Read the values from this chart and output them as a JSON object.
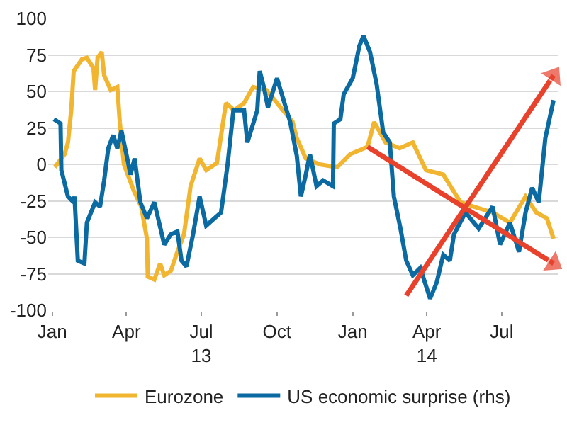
{
  "chart_data": {
    "type": "line",
    "grid": "y",
    "legend": "bottom",
    "marker": "none",
    "line_style": "solid",
    "xlim": [
      "2012-12-27",
      "2014-09-08"
    ],
    "xticks": [
      {
        "value": "2013-01-01",
        "label": "Jan"
      },
      {
        "value": "2013-04-01",
        "label": "Apr"
      },
      {
        "value": "2013-07-01",
        "label": "Jul\n13"
      },
      {
        "value": "2013-10-01",
        "label": "Oct"
      },
      {
        "value": "2014-01-01",
        "label": "Jan"
      },
      {
        "value": "2014-04-01",
        "label": "Apr\n14"
      },
      {
        "value": "2014-07-01",
        "label": "Jul"
      }
    ],
    "ylim": [
      -100,
      100
    ],
    "yticks": [
      -100,
      -75,
      -50,
      -25,
      0,
      25,
      50,
      75,
      100
    ],
    "series": [
      {
        "name": "Eurozone",
        "color": "#f2b530",
        "x": [
          "2013-01-04",
          "2013-01-16",
          "2013-01-20",
          "2013-01-24",
          "2013-01-27",
          "2013-02-06",
          "2013-02-12",
          "2013-02-20",
          "2013-02-22",
          "2013-02-25",
          "2013-03-02",
          "2013-03-05",
          "2013-03-13",
          "2013-03-21",
          "2013-03-24",
          "2013-03-29",
          "2013-04-10",
          "2013-04-19",
          "2013-04-26",
          "2013-04-27",
          "2013-05-05",
          "2013-05-12",
          "2013-05-17",
          "2013-05-25",
          "2013-06-02",
          "2013-06-10",
          "2013-06-18",
          "2013-06-29",
          "2013-07-07",
          "2013-07-20",
          "2013-07-31",
          "2013-08-10",
          "2013-08-22",
          "2013-09-02",
          "2013-09-18",
          "2013-10-04",
          "2013-10-20",
          "2013-10-25",
          "2013-11-05",
          "2013-11-22",
          "2013-12-13",
          "2013-12-29",
          "2014-01-19",
          "2014-01-27",
          "2014-02-10",
          "2014-02-27",
          "2014-03-15",
          "2014-03-31",
          "2014-04-21",
          "2014-05-12",
          "2014-05-28",
          "2014-06-20",
          "2014-07-11",
          "2014-07-30",
          "2014-08-12",
          "2014-08-25",
          "2014-09-02"
        ],
        "values": [
          -2,
          7,
          15,
          37,
          64,
          72,
          73,
          66,
          51,
          73,
          77,
          61,
          51,
          53,
          29,
          0,
          -18,
          -29,
          -51,
          -77,
          -79,
          -68,
          -76,
          -73,
          -60,
          -48,
          -15,
          4,
          -4,
          1,
          42,
          37,
          42,
          53,
          51,
          40,
          29,
          18,
          4,
          0,
          -2,
          7,
          12,
          29,
          15,
          11,
          15,
          -4,
          -7,
          -26,
          -29,
          -33,
          -40,
          -22,
          -33,
          -37,
          -51
        ]
      },
      {
        "name": "US economic surprise (rhs)",
        "color": "#0a6aa1",
        "x": [
          "2013-01-03",
          "2013-01-11",
          "2013-01-12",
          "2013-01-20",
          "2013-01-27",
          "2013-01-28",
          "2013-02-01",
          "2013-02-09",
          "2013-02-12",
          "2013-02-22",
          "2013-02-28",
          "2013-03-05",
          "2013-03-10",
          "2013-03-16",
          "2013-03-21",
          "2013-03-26",
          "2013-04-01",
          "2013-04-06",
          "2013-04-11",
          "2013-04-18",
          "2013-04-26",
          "2013-05-05",
          "2013-05-17",
          "2013-05-25",
          "2013-06-02",
          "2013-06-07",
          "2013-06-13",
          "2013-06-21",
          "2013-06-29",
          "2013-07-07",
          "2013-07-15",
          "2013-07-25",
          "2013-08-02",
          "2013-08-09",
          "2013-08-22",
          "2013-08-26",
          "2013-09-07",
          "2013-09-10",
          "2013-09-15",
          "2013-09-20",
          "2013-10-01",
          "2013-10-09",
          "2013-10-17",
          "2013-10-25",
          "2013-10-30",
          "2013-11-05",
          "2013-11-10",
          "2013-11-18",
          "2013-11-26",
          "2013-12-08",
          "2013-12-09",
          "2013-12-17",
          "2013-12-21",
          "2014-01-01",
          "2014-01-09",
          "2014-01-14",
          "2014-01-22",
          "2014-01-30",
          "2014-02-07",
          "2014-02-15",
          "2014-02-20",
          "2014-02-28",
          "2014-03-07",
          "2014-03-15",
          "2014-03-24",
          "2014-04-05",
          "2014-04-13",
          "2014-04-21",
          "2014-04-29",
          "2014-05-04",
          "2014-05-18",
          "2014-06-03",
          "2014-06-20",
          "2014-06-29",
          "2014-07-11",
          "2014-07-22",
          "2014-07-30",
          "2014-08-07",
          "2014-08-15",
          "2014-08-23",
          "2014-09-02"
        ],
        "values": [
          31,
          28,
          -4,
          -22,
          -26,
          -22,
          -66,
          -68,
          -40,
          -26,
          -29,
          -11,
          11,
          20,
          11,
          23,
          7,
          -7,
          4,
          -26,
          -37,
          -26,
          -55,
          -48,
          -46,
          -66,
          -70,
          -48,
          -22,
          -42,
          -38,
          -33,
          0,
          37,
          37,
          15,
          37,
          64,
          53,
          39,
          59,
          44,
          29,
          6,
          -22,
          -7,
          7,
          -15,
          -11,
          -15,
          28,
          31,
          48,
          59,
          81,
          88,
          77,
          55,
          22,
          15,
          -22,
          -44,
          -66,
          -76,
          -71,
          -92,
          -81,
          -62,
          -66,
          -48,
          -33,
          -44,
          -29,
          -55,
          -40,
          -60,
          -33,
          -16,
          -26,
          18,
          44
        ]
      },
      {
        "type": "line",
        "marker": "triangle",
        "color": "#e8412c",
        "x": [
          "2014-01-19",
          "2014-09-02"
        ],
        "values": [
          12,
          -68
        ]
      },
      {
        "type": "line",
        "marker": "triangle",
        "color": "#e8412c",
        "x": [
          "2014-03-07",
          "2014-09-02"
        ],
        "values": [
          -90,
          61
        ]
      }
    ]
  }
}
